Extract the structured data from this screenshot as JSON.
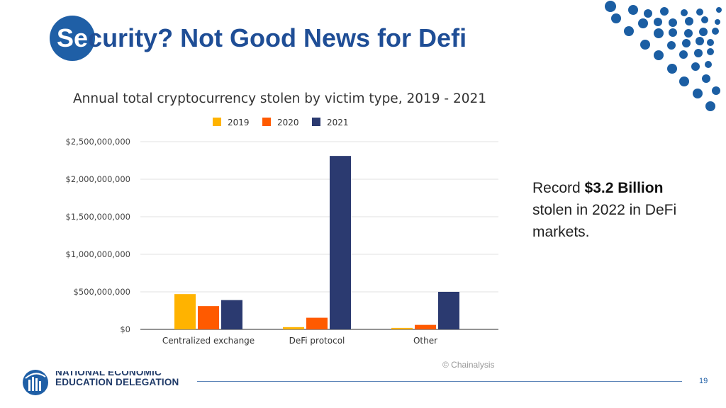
{
  "slide": {
    "title_prefix": "Se",
    "title_rest": "curity? Not Good News for Defi",
    "callout_pre": "Record ",
    "callout_bold": "$3.2 Billion",
    "callout_post": "stolen in 2022 in DeFi markets.",
    "page_number": "19",
    "logo_line1": "NATIONAL ECONOMIC",
    "logo_line2": "EDUCATION DELEGATION",
    "accent_color": "#1f5fa6",
    "dot_color": "#1b5ea3"
  },
  "chart_data": {
    "type": "bar",
    "title": "Annual total cryptocurrency stolen by victim type, 2019 - 2021",
    "categories": [
      "Centralized exchange",
      "DeFi protocol",
      "Other"
    ],
    "series": [
      {
        "name": "2019",
        "color": "#ffb300",
        "values": [
          470000000,
          30000000,
          20000000
        ]
      },
      {
        "name": "2020",
        "color": "#ff5a00",
        "values": [
          310000000,
          155000000,
          60000000
        ]
      },
      {
        "name": "2021",
        "color": "#2b3a70",
        "values": [
          390000000,
          2310000000,
          500000000
        ]
      }
    ],
    "ylim": [
      0,
      2500000000
    ],
    "y_ticks": [
      0,
      500000000,
      1000000000,
      1500000000,
      2000000000,
      2500000000
    ],
    "y_tick_labels": [
      "$0",
      "$500,000,000",
      "$1,000,000,000",
      "$1,500,000,000",
      "$2,000,000,000",
      "$2,500,000,000"
    ],
    "xlabel": "",
    "ylabel": "",
    "legend": "top-center",
    "grid": true,
    "source": "© Chainalysis"
  }
}
